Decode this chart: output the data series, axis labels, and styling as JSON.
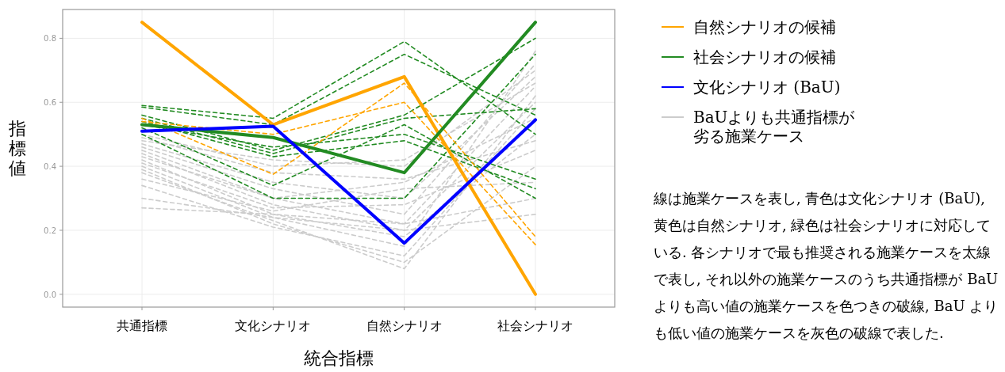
{
  "chart_data": {
    "type": "line",
    "xlabel": "統合指標",
    "ylabel": "指標値",
    "categories": [
      "共通指標",
      "文化シナリオ",
      "自然シナリオ",
      "社会シナリオ"
    ],
    "ylim": [
      -0.04,
      0.89
    ],
    "yticks": [
      {
        "value": 0,
        "label": "0.0"
      },
      0.2,
      0.4,
      0.6,
      0.8
    ],
    "grid": true,
    "legend": "right",
    "series": [
      {
        "name": "自然シナリオの候補",
        "color": "#ffa500",
        "line_style": "solid",
        "values": [
          0.85,
          0.53,
          0.68,
          0.0
        ]
      },
      {
        "name": "社会シナリオの候補",
        "color": "#228b22",
        "line_style": "solid",
        "values": [
          0.53,
          0.49,
          0.38,
          0.85
        ]
      },
      {
        "name": "文化シナリオ (BaU)",
        "color": "#0000ff",
        "line_style": "solid",
        "values": [
          0.51,
          0.525,
          0.16,
          0.545
        ]
      },
      {
        "name": "BaUよりも共通指標が劣る施業ケース",
        "color": "#cccccc",
        "line_style": "dashed",
        "values": [
          0.48,
          0.42,
          0.4,
          0.7
        ]
      },
      {
        "color": "#cccccc",
        "line_style": "dashed",
        "values": [
          0.47,
          0.35,
          0.3,
          0.68
        ]
      },
      {
        "color": "#cccccc",
        "line_style": "dashed",
        "values": [
          0.46,
          0.33,
          0.25,
          0.72
        ]
      },
      {
        "color": "#cccccc",
        "line_style": "dashed",
        "values": [
          0.45,
          0.3,
          0.22,
          0.65
        ]
      },
      {
        "color": "#cccccc",
        "line_style": "dashed",
        "values": [
          0.44,
          0.28,
          0.2,
          0.6
        ]
      },
      {
        "color": "#cccccc",
        "line_style": "dashed",
        "values": [
          0.43,
          0.3,
          0.35,
          0.55
        ]
      },
      {
        "color": "#cccccc",
        "line_style": "dashed",
        "values": [
          0.42,
          0.25,
          0.18,
          0.5
        ]
      },
      {
        "color": "#cccccc",
        "line_style": "dashed",
        "values": [
          0.41,
          0.27,
          0.28,
          0.45
        ]
      },
      {
        "color": "#cccccc",
        "line_style": "dashed",
        "values": [
          0.4,
          0.24,
          0.15,
          0.76
        ]
      },
      {
        "color": "#cccccc",
        "line_style": "dashed",
        "values": [
          0.39,
          0.22,
          0.1,
          0.4
        ]
      },
      {
        "color": "#cccccc",
        "line_style": "dashed",
        "values": [
          0.38,
          0.23,
          0.08,
          0.62
        ]
      },
      {
        "color": "#cccccc",
        "line_style": "dashed",
        "values": [
          0.36,
          0.26,
          0.33,
          0.35
        ]
      },
      {
        "color": "#cccccc",
        "line_style": "dashed",
        "values": [
          0.34,
          0.21,
          0.12,
          0.58
        ]
      },
      {
        "color": "#cccccc",
        "line_style": "dashed",
        "values": [
          0.3,
          0.24,
          0.2,
          0.25
        ]
      },
      {
        "color": "#cccccc",
        "line_style": "dashed",
        "values": [
          0.27,
          0.25,
          0.22,
          0.3
        ]
      },
      {
        "color": "#cccccc",
        "line_style": "dashed",
        "values": [
          0.5,
          0.4,
          0.42,
          0.66
        ]
      },
      {
        "color": "#cccccc",
        "line_style": "dashed",
        "values": [
          0.49,
          0.38,
          0.36,
          0.48
        ]
      },
      {
        "color": "#228b22",
        "line_style": "dashed",
        "values": [
          0.59,
          0.55,
          0.79,
          0.5
        ]
      },
      {
        "color": "#228b22",
        "line_style": "dashed",
        "values": [
          0.585,
          0.53,
          0.75,
          0.56
        ]
      },
      {
        "color": "#228b22",
        "line_style": "dashed",
        "values": [
          0.56,
          0.45,
          0.56,
          0.8
        ]
      },
      {
        "color": "#228b22",
        "line_style": "dashed",
        "values": [
          0.55,
          0.44,
          0.55,
          0.58
        ]
      },
      {
        "color": "#228b22",
        "line_style": "dashed",
        "values": [
          0.54,
          0.43,
          0.48,
          0.33
        ]
      },
      {
        "color": "#228b22",
        "line_style": "dashed",
        "values": [
          0.52,
          0.34,
          0.53,
          0.3
        ]
      },
      {
        "color": "#228b22",
        "line_style": "dashed",
        "values": [
          0.5,
          0.3,
          0.3,
          0.75
        ]
      },
      {
        "color": "#228b22",
        "line_style": "dashed",
        "values": [
          0.53,
          0.46,
          0.5,
          0.36
        ]
      },
      {
        "color": "#ffa500",
        "line_style": "dashed",
        "values": [
          0.55,
          0.375,
          0.66,
          0.18
        ]
      },
      {
        "color": "#ffa500",
        "line_style": "dashed",
        "values": [
          0.54,
          0.5,
          0.6,
          0.155
        ]
      }
    ],
    "annotations": [
      "線は施業ケースを表し, 青色は文化シナリオ (BaU), 黄色は自然シナリオ, 緑色は社会シナリオに対応している. 各シナリオで最も推奨される施業ケースを太線で表し, それ以外の施業ケースのうち共通指標が BaU よりも高い値の施業ケースを色つきの破線, BaU よりも低い値の施業ケースを灰色の破線で表した."
    ]
  }
}
